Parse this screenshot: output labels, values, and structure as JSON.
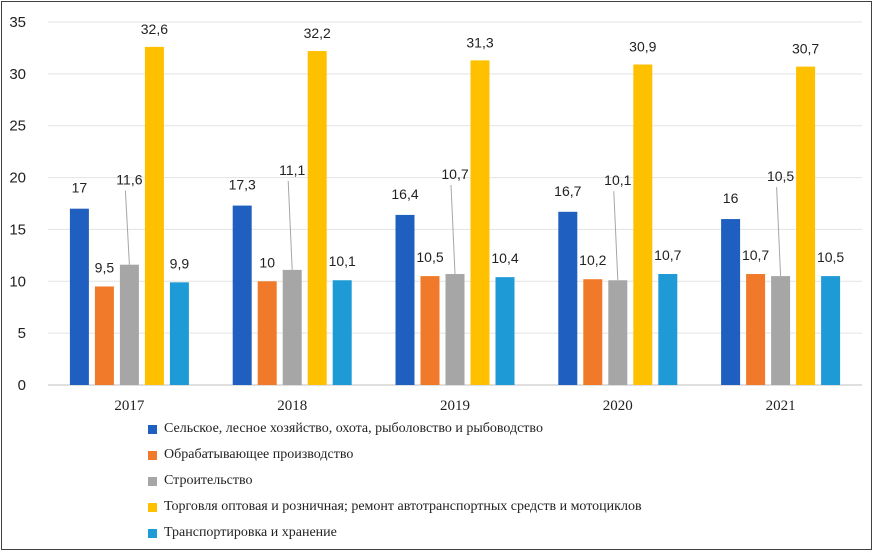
{
  "chart_data": {
    "type": "bar",
    "categories": [
      "2017",
      "2018",
      "2019",
      "2020",
      "2021"
    ],
    "ylim": [
      0,
      35
    ],
    "yticks": [
      0,
      5,
      10,
      15,
      20,
      25,
      30,
      35
    ],
    "grid": true,
    "legend_position": "bottom",
    "series": [
      {
        "name": "Сельское, лесное хозяйство, охота, рыболовство и рыбоводство",
        "color": "#1f5fbf",
        "values": [
          17,
          17.3,
          16.4,
          16.7,
          16
        ],
        "labels": [
          "17",
          "17,3",
          "16,4",
          "16,7",
          "16"
        ]
      },
      {
        "name": "Обрабатывающее производство",
        "color": "#f07a2a",
        "values": [
          9.5,
          10,
          10.5,
          10.2,
          10.7
        ],
        "labels": [
          "9,5",
          "10",
          "10,5",
          "10,2",
          "10,7"
        ]
      },
      {
        "name": "Строительство",
        "color": "#a6a6a6",
        "values": [
          11.6,
          11.1,
          10.7,
          10.1,
          10.5
        ],
        "labels": [
          "11,6",
          "11,1",
          "10,7",
          "10,1",
          "10,5"
        ]
      },
      {
        "name": "Торговля оптовая и розничная; ремонт автотранспортных средств и мотоциклов",
        "color": "#ffc000",
        "values": [
          32.6,
          32.2,
          31.3,
          30.9,
          30.7
        ],
        "labels": [
          "32,6",
          "32,2",
          "31,3",
          "30,9",
          "30,7"
        ]
      },
      {
        "name": "Транспортировка и хранение",
        "color": "#1e9ad6",
        "values": [
          9.9,
          10.1,
          10.4,
          10.7,
          10.5
        ],
        "labels": [
          "9,9",
          "10,1",
          "10,4",
          "10,7",
          "10,5"
        ]
      }
    ]
  }
}
